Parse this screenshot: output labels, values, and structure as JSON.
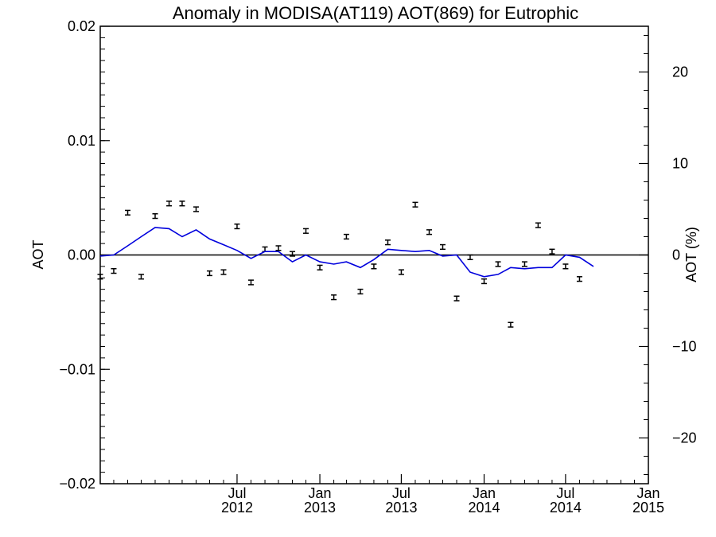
{
  "chart_data": {
    "type": "line",
    "title": "Anomaly in MODISA(AT119) AOT(869) for Eutrophic",
    "ylabel": "AOT",
    "ylabel_right": "AOT (%)",
    "ylim": [
      -0.02,
      0.02
    ],
    "ylim_right": [
      -25,
      25
    ],
    "y_ticks": [
      {
        "value": 0.02,
        "label": "0.02"
      },
      {
        "value": 0.01,
        "label": "0.01"
      },
      {
        "value": 0.0,
        "label": "0.00"
      },
      {
        "value": -0.01,
        "label": "−0.01"
      },
      {
        "value": -0.02,
        "label": "−0.02"
      }
    ],
    "y_ticks_right": [
      {
        "value": 20,
        "label": "20"
      },
      {
        "value": 10,
        "label": "10"
      },
      {
        "value": 0,
        "label": "0"
      },
      {
        "value": -10,
        "label": "−10"
      },
      {
        "value": -20,
        "label": "−20"
      }
    ],
    "x_range": [
      "2011-09-01",
      "2015-01-01"
    ],
    "x_ticks": [
      {
        "date": "2012-07-01",
        "month": "Jul",
        "year": "2012"
      },
      {
        "date": "2013-01-01",
        "month": "Jan",
        "year": "2013"
      },
      {
        "date": "2013-07-01",
        "month": "Jul",
        "year": "2013"
      },
      {
        "date": "2014-01-01",
        "month": "Jan",
        "year": "2014"
      },
      {
        "date": "2014-07-01",
        "month": "Jul",
        "year": "2014"
      },
      {
        "date": "2015-01-01",
        "month": "Jan",
        "year": "2015"
      }
    ],
    "zero_line": true,
    "series": [
      {
        "style": "points-with-error-bars",
        "color": "#000000",
        "points": [
          {
            "x": "2011-09-01",
            "y": -0.0019
          },
          {
            "x": "2011-10-01",
            "y": -0.0014
          },
          {
            "x": "2011-11-01",
            "y": 0.0037
          },
          {
            "x": "2011-12-01",
            "y": -0.0019
          },
          {
            "x": "2012-01-01",
            "y": 0.0034
          },
          {
            "x": "2012-02-01",
            "y": 0.0045
          },
          {
            "x": "2012-03-01",
            "y": 0.0045
          },
          {
            "x": "2012-04-01",
            "y": 0.004
          },
          {
            "x": "2012-05-01",
            "y": -0.0016
          },
          {
            "x": "2012-06-01",
            "y": -0.0015
          },
          {
            "x": "2012-07-01",
            "y": 0.0025
          },
          {
            "x": "2012-08-01",
            "y": -0.0024
          },
          {
            "x": "2012-09-01",
            "y": 0.0005
          },
          {
            "x": "2012-10-01",
            "y": 0.0006
          },
          {
            "x": "2012-11-01",
            "y": 0.0001
          },
          {
            "x": "2012-12-01",
            "y": 0.0021
          },
          {
            "x": "2013-01-01",
            "y": -0.0011
          },
          {
            "x": "2013-02-01",
            "y": -0.0037
          },
          {
            "x": "2013-03-01",
            "y": 0.0016
          },
          {
            "x": "2013-04-01",
            "y": -0.0032
          },
          {
            "x": "2013-05-01",
            "y": -0.001
          },
          {
            "x": "2013-06-01",
            "y": 0.0011
          },
          {
            "x": "2013-07-01",
            "y": -0.0015
          },
          {
            "x": "2013-08-01",
            "y": 0.0044
          },
          {
            "x": "2013-09-01",
            "y": 0.002
          },
          {
            "x": "2013-10-01",
            "y": 0.0007
          },
          {
            "x": "2013-11-01",
            "y": -0.0038
          },
          {
            "x": "2013-12-01",
            "y": -0.0002
          },
          {
            "x": "2014-01-01",
            "y": -0.0023
          },
          {
            "x": "2014-02-01",
            "y": -0.0008
          },
          {
            "x": "2014-03-01",
            "y": -0.0061
          },
          {
            "x": "2014-04-01",
            "y": -0.0008
          },
          {
            "x": "2014-05-01",
            "y": 0.0026
          },
          {
            "x": "2014-06-01",
            "y": 0.0003
          },
          {
            "x": "2014-07-01",
            "y": -0.001
          },
          {
            "x": "2014-08-01",
            "y": -0.0021
          }
        ]
      },
      {
        "style": "line",
        "color": "#0000dd",
        "points": [
          {
            "x": "2011-09-01",
            "y": -0.0001
          },
          {
            "x": "2011-10-01",
            "y": 0.0
          },
          {
            "x": "2011-11-01",
            "y": 0.0008
          },
          {
            "x": "2011-12-01",
            "y": 0.0016
          },
          {
            "x": "2012-01-01",
            "y": 0.0024
          },
          {
            "x": "2012-02-01",
            "y": 0.0023
          },
          {
            "x": "2012-03-01",
            "y": 0.0016
          },
          {
            "x": "2012-04-01",
            "y": 0.0022
          },
          {
            "x": "2012-05-01",
            "y": 0.0014
          },
          {
            "x": "2012-06-01",
            "y": 0.0009
          },
          {
            "x": "2012-07-01",
            "y": 0.0004
          },
          {
            "x": "2012-08-01",
            "y": -0.0003
          },
          {
            "x": "2012-09-01",
            "y": 0.0003
          },
          {
            "x": "2012-10-01",
            "y": 0.0003
          },
          {
            "x": "2012-11-01",
            "y": -0.0006
          },
          {
            "x": "2012-12-01",
            "y": 0.0
          },
          {
            "x": "2013-01-01",
            "y": -0.0006
          },
          {
            "x": "2013-02-01",
            "y": -0.0008
          },
          {
            "x": "2013-03-01",
            "y": -0.0006
          },
          {
            "x": "2013-04-01",
            "y": -0.0011
          },
          {
            "x": "2013-05-01",
            "y": -0.0004
          },
          {
            "x": "2013-06-01",
            "y": 0.0005
          },
          {
            "x": "2013-07-01",
            "y": 0.0004
          },
          {
            "x": "2013-08-01",
            "y": 0.0003
          },
          {
            "x": "2013-09-01",
            "y": 0.0004
          },
          {
            "x": "2013-10-01",
            "y": -0.0001
          },
          {
            "x": "2013-11-01",
            "y": 0.0
          },
          {
            "x": "2013-12-01",
            "y": -0.0015
          },
          {
            "x": "2014-01-01",
            "y": -0.0019
          },
          {
            "x": "2014-02-01",
            "y": -0.0017
          },
          {
            "x": "2014-03-01",
            "y": -0.0011
          },
          {
            "x": "2014-04-01",
            "y": -0.0012
          },
          {
            "x": "2014-05-01",
            "y": -0.0011
          },
          {
            "x": "2014-06-01",
            "y": -0.0011
          },
          {
            "x": "2014-07-01",
            "y": 0.0
          },
          {
            "x": "2014-08-01",
            "y": -0.0002
          },
          {
            "x": "2014-09-01",
            "y": -0.001
          }
        ]
      }
    ],
    "error_bar_half_height": 0.0002,
    "grid": false
  }
}
